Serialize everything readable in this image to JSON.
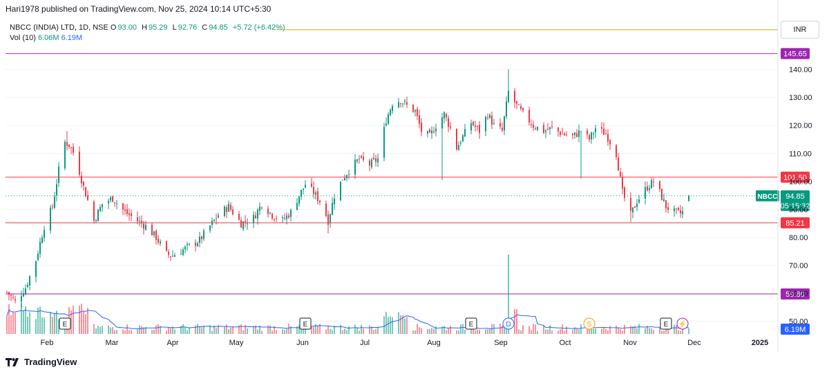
{
  "header": {
    "published_text": "Hari1978 published on TradingView.com, Nov 25, 2024 10:14 UTC+5:30"
  },
  "legend": {
    "symbol": "NBCC (INDIA) LTD, 1D, NSE",
    "o_label": "O",
    "o_value": "93.00",
    "h_label": "H",
    "h_value": "95.29",
    "l_label": "L",
    "l_value": "92.76",
    "c_label": "C",
    "c_value": "94.85",
    "change": "+5.72 (+6.42%)",
    "vol_label": "Vol (10)",
    "vol_value1": "6.06M",
    "vol_value2": "6.19M"
  },
  "currency_button": "INR",
  "footer": {
    "brand": "TradingView"
  },
  "colors": {
    "up": "#089981",
    "down": "#f23645",
    "volume_ma": "#2962ff",
    "hline_red": "#f23645",
    "hline_purple": "#9c27b0",
    "hline_yellow": "#d4a60c"
  },
  "chart_data": {
    "type": "candlestick",
    "ylim": [
      45,
      150
    ],
    "y_ticks": [
      50,
      60,
      70,
      80,
      90,
      100,
      110,
      120,
      130,
      140
    ],
    "y_tick_labels": [
      "50.00",
      "60.00",
      "70.00",
      "80.00",
      "90.00",
      "100.00",
      "110.00",
      "120.00",
      "130.00",
      "140.00"
    ],
    "x_tick_labels": [
      "Feb",
      "Mar",
      "Apr",
      "May",
      "Jun",
      "Jul",
      "Aug",
      "Sep",
      "Oct",
      "Nov",
      "Dec",
      "2025"
    ],
    "horizontal_levels": [
      {
        "value": 145.65,
        "label": "145.65",
        "color": "#9c27b0"
      },
      {
        "value": 101.5,
        "label": "101.50",
        "color": "#f23645"
      },
      {
        "value": 85.21,
        "label": "85.21",
        "color": "#f23645"
      },
      {
        "value": 59.8,
        "label": "59.80",
        "color": "#9c27b0"
      }
    ],
    "last_price": {
      "symbol": "NBCC",
      "value": 94.85,
      "label": "94.85",
      "countdown": "05:15:32"
    },
    "volume_label": "6.19M",
    "events": [
      {
        "date": "Jan 29",
        "icon": "E"
      },
      {
        "date": "May 24",
        "icon": "E"
      },
      {
        "date": "Aug 12",
        "icon": "E"
      },
      {
        "date": "Aug 30",
        "icon": "D"
      },
      {
        "date": "Oct 8",
        "icon": "S"
      },
      {
        "date": "Nov 14",
        "icon": "E"
      },
      {
        "date": "Nov 22",
        "icon": "⚡"
      }
    ],
    "price_path": [
      [
        "Jan 1",
        60.5
      ],
      [
        "Jan 5",
        57.0
      ],
      [
        "Jan 10",
        62.0
      ],
      [
        "Jan 15",
        72.0
      ],
      [
        "Jan 19",
        84.0
      ],
      [
        "Jan 23",
        91.0
      ],
      [
        "Jan 26",
        104.0
      ],
      [
        "Jan 29",
        114.0
      ],
      [
        "Jan 31",
        113.0
      ],
      [
        "Feb 3",
        109.0
      ],
      [
        "Feb 7",
        98.0
      ],
      [
        "Feb 12",
        86.0
      ],
      [
        "Feb 16",
        92.0
      ],
      [
        "Feb 21",
        94.0
      ],
      [
        "Feb 27",
        89.0
      ],
      [
        "Mar 4",
        86.0
      ],
      [
        "Mar 8",
        84.0
      ],
      [
        "Mar 13",
        80.0
      ],
      [
        "Mar 18",
        74.0
      ],
      [
        "Mar 21",
        73.5
      ],
      [
        "Mar 27",
        76.0
      ],
      [
        "Apr 3",
        79.0
      ],
      [
        "Apr 8",
        84.0
      ],
      [
        "Apr 12",
        88.0
      ],
      [
        "Apr 17",
        91.0
      ],
      [
        "Apr 23",
        85.0
      ],
      [
        "Apr 29",
        87.0
      ],
      [
        "May 3",
        92.0
      ],
      [
        "May 8",
        88.0
      ],
      [
        "May 13",
        86.0
      ],
      [
        "May 17",
        89.0
      ],
      [
        "May 21",
        95.0
      ],
      [
        "May 24",
        99.0
      ],
      [
        "May 28",
        96.0
      ],
      [
        "Jun 1",
        92.0
      ],
      [
        "Jun 4",
        86.0
      ],
      [
        "Jun 7",
        95.0
      ],
      [
        "Jun 11",
        101.0
      ],
      [
        "Jun 14",
        104.0
      ],
      [
        "Jun 19",
        108.0
      ],
      [
        "Jun 24",
        106.0
      ],
      [
        "Jun 28",
        108.0
      ],
      [
        "Jul 2",
        122.0
      ],
      [
        "Jul 5",
        128.0
      ],
      [
        "Jul 9",
        129.0
      ],
      [
        "Jul 12",
        127.0
      ],
      [
        "Jul 16",
        125.0
      ],
      [
        "Jul 19",
        118.0
      ],
      [
        "Jul 23",
        116.0
      ],
      [
        "Jul 26",
        120.0
      ],
      [
        "Jul 30",
        124.0
      ],
      [
        "Aug 2",
        119.0
      ],
      [
        "Aug 5",
        112.0
      ],
      [
        "Aug 8",
        116.0
      ],
      [
        "Aug 12",
        121.0
      ],
      [
        "Aug 16",
        118.0
      ],
      [
        "Aug 20",
        124.0
      ],
      [
        "Aug 23",
        120.0
      ],
      [
        "Aug 27",
        118.0
      ],
      [
        "Aug 30",
        132.0
      ],
      [
        "Sep 3",
        127.0
      ],
      [
        "Sep 6",
        124.0
      ],
      [
        "Sep 11",
        120.0
      ],
      [
        "Sep 16",
        118.0
      ],
      [
        "Sep 20",
        119.0
      ],
      [
        "Sep 25",
        117.0
      ],
      [
        "Sep 30",
        116.0
      ],
      [
        "Oct 4",
        118.0
      ],
      [
        "Oct 8",
        115.0
      ],
      [
        "Oct 11",
        119.0
      ],
      [
        "Oct 16",
        117.0
      ],
      [
        "Oct 21",
        110.0
      ],
      [
        "Oct 24",
        96.0
      ],
      [
        "Oct 28",
        88.0
      ],
      [
        "Oct 31",
        93.0
      ],
      [
        "Nov 5",
        98.0
      ],
      [
        "Nov 8",
        100.0
      ],
      [
        "Nov 11",
        96.0
      ],
      [
        "Nov 14",
        91.0
      ],
      [
        "Nov 18",
        89.0
      ],
      [
        "Nov 21",
        88.5
      ],
      [
        "Nov 22",
        89.0
      ],
      [
        "Nov 25",
        94.85
      ]
    ]
  }
}
